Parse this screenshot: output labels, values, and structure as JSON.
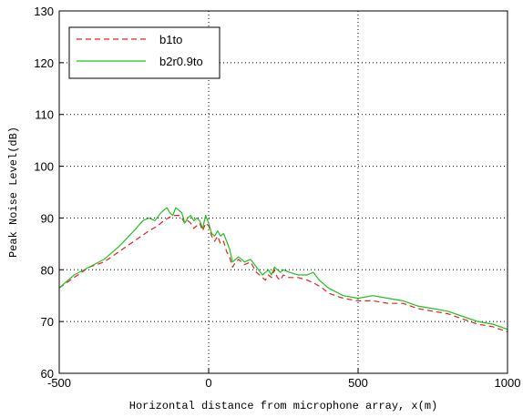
{
  "chart_data": {
    "type": "line",
    "title": "",
    "xlabel": "Horizontal distance from microphone array, x(m)",
    "ylabel": "Peak Noise Level(dB)",
    "xlim": [
      -500,
      1000
    ],
    "ylim": [
      60,
      130
    ],
    "xticks": [
      -500,
      0,
      500,
      1000
    ],
    "yticks": [
      60,
      70,
      80,
      90,
      100,
      110,
      120,
      130
    ],
    "grid": "dotted",
    "legend_position": "top-left",
    "series": [
      {
        "name": "b1to",
        "color": "#e02020",
        "style": "dashed",
        "x": [
          -500,
          -450,
          -400,
          -350,
          -300,
          -250,
          -200,
          -170,
          -150,
          -120,
          -100,
          -90,
          -80,
          -70,
          -60,
          -50,
          -40,
          -30,
          -20,
          -10,
          0,
          10,
          20,
          30,
          40,
          50,
          60,
          70,
          80,
          90,
          100,
          120,
          140,
          160,
          180,
          190,
          200,
          210,
          220,
          230,
          240,
          250,
          270,
          300,
          330,
          350,
          380,
          400,
          450,
          500,
          550,
          600,
          650,
          700,
          750,
          800,
          850,
          900,
          950,
          1000
        ],
        "y": [
          76.5,
          78.5,
          80.5,
          81.5,
          83.5,
          85.5,
          87.5,
          88.5,
          89.5,
          90.5,
          90.5,
          90,
          89,
          89.5,
          89,
          88,
          88.5,
          89,
          87.5,
          89,
          88.5,
          86.5,
          85.5,
          86.5,
          85,
          85.5,
          83.5,
          82.5,
          80.5,
          81.5,
          82,
          81,
          81.5,
          79.5,
          78.5,
          78,
          79,
          78.5,
          80,
          78.5,
          78,
          79,
          78.5,
          78.5,
          78,
          77.5,
          76.5,
          75.5,
          74.5,
          74,
          74,
          73.5,
          73.5,
          72.5,
          72,
          71.5,
          70.5,
          69.5,
          69,
          68
        ]
      },
      {
        "name": "b2r0.9to",
        "color": "#20c020",
        "style": "solid",
        "x": [
          -500,
          -450,
          -400,
          -350,
          -300,
          -250,
          -220,
          -200,
          -180,
          -160,
          -150,
          -140,
          -130,
          -120,
          -110,
          -100,
          -90,
          -80,
          -70,
          -60,
          -50,
          -40,
          -30,
          -20,
          -10,
          0,
          10,
          20,
          30,
          40,
          50,
          60,
          70,
          80,
          90,
          100,
          120,
          140,
          160,
          180,
          190,
          200,
          210,
          220,
          230,
          240,
          250,
          270,
          300,
          330,
          350,
          370,
          400,
          450,
          500,
          550,
          600,
          650,
          700,
          750,
          800,
          850,
          900,
          950,
          1000
        ],
        "y": [
          76.5,
          79,
          80.5,
          82,
          84.5,
          87.5,
          89.5,
          90,
          89.5,
          91,
          91.5,
          92,
          91,
          90.5,
          92,
          91.5,
          91,
          89,
          90,
          90.5,
          89.5,
          90,
          89.5,
          88,
          90.5,
          89,
          87,
          86.5,
          87.5,
          86.5,
          87,
          85.5,
          84,
          81.5,
          82,
          82.5,
          81.5,
          82,
          80.5,
          79,
          79.5,
          80,
          79,
          80.5,
          80,
          79.5,
          80,
          79.5,
          79,
          79,
          79.5,
          78,
          76.5,
          75,
          74.5,
          75,
          74.5,
          74,
          73,
          72.5,
          72,
          71,
          70,
          69.5,
          68.5
        ]
      }
    ]
  }
}
